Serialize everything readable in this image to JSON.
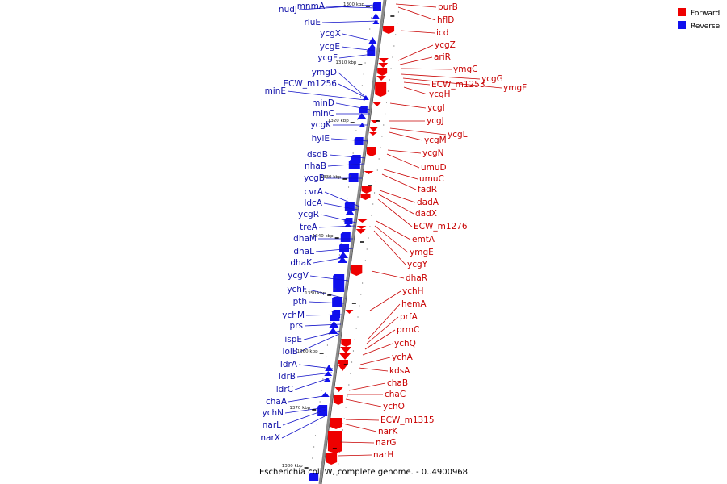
{
  "caption": "Escherichia coli W, complete genome. - 0..4900968",
  "legend": {
    "forward": {
      "label": "Forward",
      "color": "#ee0000"
    },
    "reverse": {
      "label": "Reverse",
      "color": "#1010ee"
    }
  },
  "scale_marks": [
    "1300 kbp",
    "1310 kbp",
    "1320 kbp",
    "1330 kbp",
    "1340 kbp",
    "1350 kbp",
    "1360 kbp",
    "1370 kbp",
    "1380 kbp"
  ],
  "reverse_genes": [
    "nudJ",
    "mnmA",
    "rluE",
    "ycgX",
    "ycgE",
    "ycgF",
    "ymgD",
    "ECW_m1256",
    "minE",
    "minD",
    "minC",
    "ycgK",
    "hylE",
    "dsdB",
    "nhaB",
    "ycgB",
    "cvrA",
    "ldcA",
    "ycgR",
    "treA",
    "dhaM",
    "dhaL",
    "dhaK",
    "ycgV",
    "ychF",
    "pth",
    "ychM",
    "prs",
    "ispE",
    "lolB",
    "ldrA",
    "ldrB",
    "ldrC",
    "chaA",
    "ychN",
    "narL",
    "narX"
  ],
  "forward_genes": [
    "purB",
    "hflD",
    "icd",
    "ycgZ",
    "ariR",
    "ymgC",
    "ycgG",
    "ymgF",
    "ECW_m1253",
    "ycgH",
    "ycgI",
    "ycgJ",
    "ycgL",
    "ycgM",
    "ycgN",
    "umuD",
    "umuC",
    "fadR",
    "dadA",
    "dadX",
    "ECW_m1276",
    "emtA",
    "ymgE",
    "ycgY",
    "dhaR",
    "ychH",
    "hemA",
    "prfA",
    "prmC",
    "ychQ",
    "ychA",
    "kdsA",
    "chaB",
    "chaC",
    "ychO",
    "ECW_m1315",
    "narK",
    "narG",
    "narH"
  ]
}
